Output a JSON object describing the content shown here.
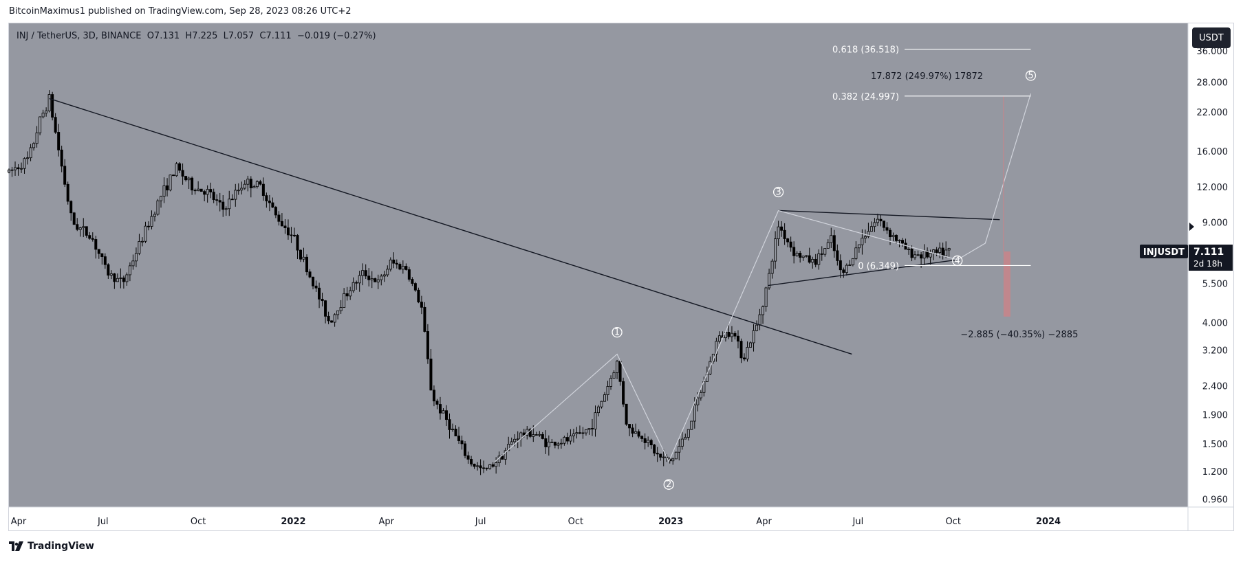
{
  "attribution": "BitcoinMaximus1 published on TradingView.com, Sep 28, 2023 08:26 UTC+2",
  "legend": {
    "symbol": "INJ / TetherUS, 3D, BINANCE",
    "o_label": "O",
    "o_value": "7.131",
    "h_label": "H",
    "h_value": "7.225",
    "l_label": "L",
    "l_value": "7.057",
    "c_label": "C",
    "c_value": "7.111",
    "change": "−0.019 (−0.27%)"
  },
  "unit_button": "USDT",
  "footer_brand": "TradingView",
  "colors": {
    "plot_bg": "#9598a1",
    "candle": "#000000",
    "trendline": "#131722",
    "wave_line": "#d1d4dc",
    "fib_line": "#ffffff",
    "target_red": "#c9848a",
    "price_label_bg": "#131722"
  },
  "chart_data": {
    "type": "candlestick",
    "y_scale": "log",
    "ylim": [
      0.9,
      45
    ],
    "y_ticks": [
      "36.000",
      "28.000",
      "22.000",
      "16.000",
      "12.000",
      "9.000",
      "7.000",
      "5.500",
      "4.000",
      "3.200",
      "2.400",
      "1.900",
      "1.500",
      "1.200",
      "0.960"
    ],
    "x_ticks": [
      {
        "label": "Apr",
        "date": "2021-04-01",
        "bold": false
      },
      {
        "label": "Jul",
        "date": "2021-07-01",
        "bold": false
      },
      {
        "label": "Oct",
        "date": "2021-10-01",
        "bold": false
      },
      {
        "label": "2022",
        "date": "2022-01-01",
        "bold": true
      },
      {
        "label": "Apr",
        "date": "2022-04-01",
        "bold": false
      },
      {
        "label": "Jul",
        "date": "2022-07-01",
        "bold": false
      },
      {
        "label": "Oct",
        "date": "2022-10-01",
        "bold": false
      },
      {
        "label": "2023",
        "date": "2023-01-01",
        "bold": true
      },
      {
        "label": "Apr",
        "date": "2023-04-01",
        "bold": false
      },
      {
        "label": "Jul",
        "date": "2023-07-01",
        "bold": false
      },
      {
        "label": "Oct",
        "date": "2023-10-01",
        "bold": false
      },
      {
        "label": "2024",
        "date": "2024-01-01",
        "bold": true
      }
    ],
    "price_path": [
      [
        "2021-04-01",
        13.5
      ],
      [
        "2021-04-20",
        15.0
      ],
      [
        "2021-05-01",
        20.5
      ],
      [
        "2021-05-10",
        24.5
      ],
      [
        "2021-05-20",
        15.5
      ],
      [
        "2021-06-01",
        9.0
      ],
      [
        "2021-06-20",
        8.0
      ],
      [
        "2021-07-05",
        6.0
      ],
      [
        "2021-07-20",
        5.5
      ],
      [
        "2021-08-05",
        7.5
      ],
      [
        "2021-08-25",
        11.0
      ],
      [
        "2021-09-10",
        14.0
      ],
      [
        "2021-09-25",
        12.0
      ],
      [
        "2021-10-10",
        11.5
      ],
      [
        "2021-10-25",
        10.0
      ],
      [
        "2021-11-15",
        12.5
      ],
      [
        "2021-12-01",
        12.0
      ],
      [
        "2021-12-15",
        9.5
      ],
      [
        "2022-01-01",
        8.0
      ],
      [
        "2022-01-20",
        5.5
      ],
      [
        "2022-02-05",
        4.0
      ],
      [
        "2022-02-20",
        5.0
      ],
      [
        "2022-03-10",
        6.0
      ],
      [
        "2022-03-25",
        5.5
      ],
      [
        "2022-04-05",
        6.5
      ],
      [
        "2022-04-20",
        6.2
      ],
      [
        "2022-05-05",
        4.5
      ],
      [
        "2022-05-15",
        2.2
      ],
      [
        "2022-05-30",
        1.8
      ],
      [
        "2022-06-20",
        1.3
      ],
      [
        "2022-07-05",
        1.2
      ],
      [
        "2022-07-20",
        1.35
      ],
      [
        "2022-08-05",
        1.6
      ],
      [
        "2022-08-20",
        1.65
      ],
      [
        "2022-09-05",
        1.5
      ],
      [
        "2022-09-25",
        1.55
      ],
      [
        "2022-10-15",
        1.7
      ],
      [
        "2022-11-01",
        2.4
      ],
      [
        "2022-11-10",
        2.9
      ],
      [
        "2022-11-20",
        1.7
      ],
      [
        "2022-12-05",
        1.6
      ],
      [
        "2022-12-20",
        1.35
      ],
      [
        "2023-01-01",
        1.3
      ],
      [
        "2023-01-15",
        1.6
      ],
      [
        "2023-02-01",
        2.4
      ],
      [
        "2023-02-15",
        3.5
      ],
      [
        "2023-03-01",
        3.8
      ],
      [
        "2023-03-12",
        3.0
      ],
      [
        "2023-03-25",
        3.9
      ],
      [
        "2023-04-05",
        5.6
      ],
      [
        "2023-04-15",
        8.8
      ],
      [
        "2023-05-01",
        7.0
      ],
      [
        "2023-05-20",
        6.5
      ],
      [
        "2023-06-05",
        7.8
      ],
      [
        "2023-06-15",
        5.8
      ],
      [
        "2023-06-25",
        6.8
      ],
      [
        "2023-07-10",
        8.5
      ],
      [
        "2023-07-20",
        9.2
      ],
      [
        "2023-08-05",
        8.0
      ],
      [
        "2023-08-20",
        7.0
      ],
      [
        "2023-09-05",
        6.9
      ],
      [
        "2023-09-28",
        7.111
      ]
    ],
    "long_trendline": {
      "start": [
        "2021-05-10",
        24.5
      ],
      "end": [
        "2023-06-25",
        3.1
      ]
    },
    "triangle_upper": {
      "start": [
        "2023-04-15",
        9.9
      ],
      "end": [
        "2023-11-15",
        9.2
      ]
    },
    "triangle_lower": {
      "start": [
        "2023-04-05",
        5.4
      ],
      "end": [
        "2023-10-05",
        6.65
      ]
    },
    "wave_projection": [
      [
        "2022-07-15",
        1.3
      ],
      [
        "2022-11-10",
        3.1
      ],
      [
        "2022-12-30",
        1.3
      ],
      [
        "2023-04-15",
        9.9
      ],
      [
        "2023-10-05",
        6.65
      ],
      [
        "2023-11-01",
        7.6
      ],
      [
        "2023-12-15",
        25.5
      ]
    ],
    "wave_labels": [
      {
        "text": "1",
        "date": "2022-11-10",
        "price": 3.7
      },
      {
        "text": "2",
        "date": "2022-12-30",
        "price": 1.08
      },
      {
        "text": "3",
        "date": "2023-04-15",
        "price": 11.5
      },
      {
        "text": "4",
        "date": "2023-10-05",
        "price": 6.6
      },
      {
        "text": "5",
        "date": "2023-12-15",
        "price": 29.5
      }
    ],
    "fib_levels": [
      {
        "label": "0.618 (36.518)",
        "price": 36.518
      },
      {
        "label": "0.382 (24.997)",
        "price": 24.997
      },
      {
        "label": "0 (6.349)",
        "price": 6.349
      }
    ],
    "fib_range": {
      "start": "2023-08-15",
      "end": "2023-12-15"
    },
    "measure_up_label": "17.872 (249.97%) 17872",
    "measure_down_label": "−2.885 (−40.35%) −2885",
    "down_box": {
      "date": "2023-11-22",
      "top": 7.111,
      "bottom": 4.2
    },
    "up_measure_price": 25.0,
    "current": {
      "symbol": "INJUSDT",
      "price_label": "7.111",
      "countdown": "2d 18h",
      "price": 7.111
    }
  }
}
